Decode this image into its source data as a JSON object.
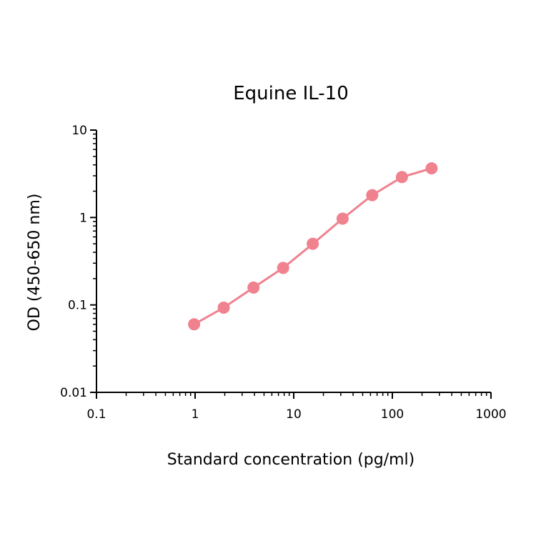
{
  "chart_data": {
    "type": "line",
    "title": "Equine IL-10",
    "xlabel": "Standard concentration (pg/ml)",
    "ylabel": "OD (450-650 nm)",
    "x_scale": "log",
    "y_scale": "log",
    "xlim": [
      0.1,
      1000
    ],
    "ylim": [
      0.01,
      10
    ],
    "x_ticks": [
      "0.1",
      "1",
      "10",
      "100",
      "1000"
    ],
    "y_ticks": [
      "0.01",
      "0.1",
      "1",
      "10"
    ],
    "grid": false,
    "legend": "none",
    "series": [
      {
        "color": "#f0818f",
        "marker": "circle",
        "x": [
          0.977,
          1.95,
          3.91,
          7.81,
          15.6,
          31.3,
          62.5,
          125,
          250
        ],
        "y": [
          0.06,
          0.093,
          0.158,
          0.265,
          0.5,
          0.97,
          1.8,
          2.9,
          3.65
        ]
      }
    ]
  }
}
